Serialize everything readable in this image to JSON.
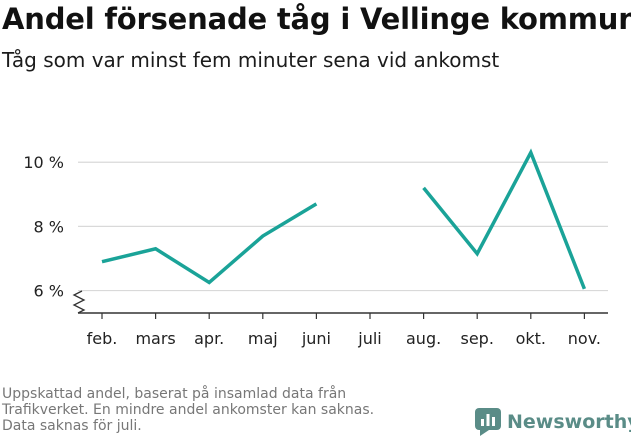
{
  "title": "Andel försenade tåg i Vellinge kommun",
  "subtitle": "Tåg som var minst fem minuter sena vid ankomst",
  "footnote": [
    "Uppskattad andel, baserat på insamlad data från",
    "Trafikverket. En mindre andel ankomster kan saknas.",
    "Data saknas för juli."
  ],
  "brand": "Newsworthy",
  "colors": {
    "line": "#1aa398",
    "grid": "#d9d9d9",
    "axis": "#333333",
    "brand": "#5a8c87"
  },
  "chart_data": {
    "type": "line",
    "categories": [
      "feb.",
      "mars",
      "apr.",
      "maj",
      "juni",
      "juli",
      "aug.",
      "sep.",
      "okt.",
      "nov."
    ],
    "values": [
      6.9,
      7.3,
      6.25,
      7.7,
      8.7,
      null,
      9.2,
      7.15,
      10.3,
      6.05
    ],
    "y_ticks": [
      {
        "value": 6,
        "label": "6 %"
      },
      {
        "value": 8,
        "label": "8 %"
      },
      {
        "value": 10,
        "label": "10 %"
      }
    ],
    "ylim": [
      5.3,
      10.6
    ],
    "y_axis_break": true,
    "grid": true,
    "title": "Andel försenade tåg i Vellinge kommun",
    "xlabel": "",
    "ylabel": ""
  }
}
